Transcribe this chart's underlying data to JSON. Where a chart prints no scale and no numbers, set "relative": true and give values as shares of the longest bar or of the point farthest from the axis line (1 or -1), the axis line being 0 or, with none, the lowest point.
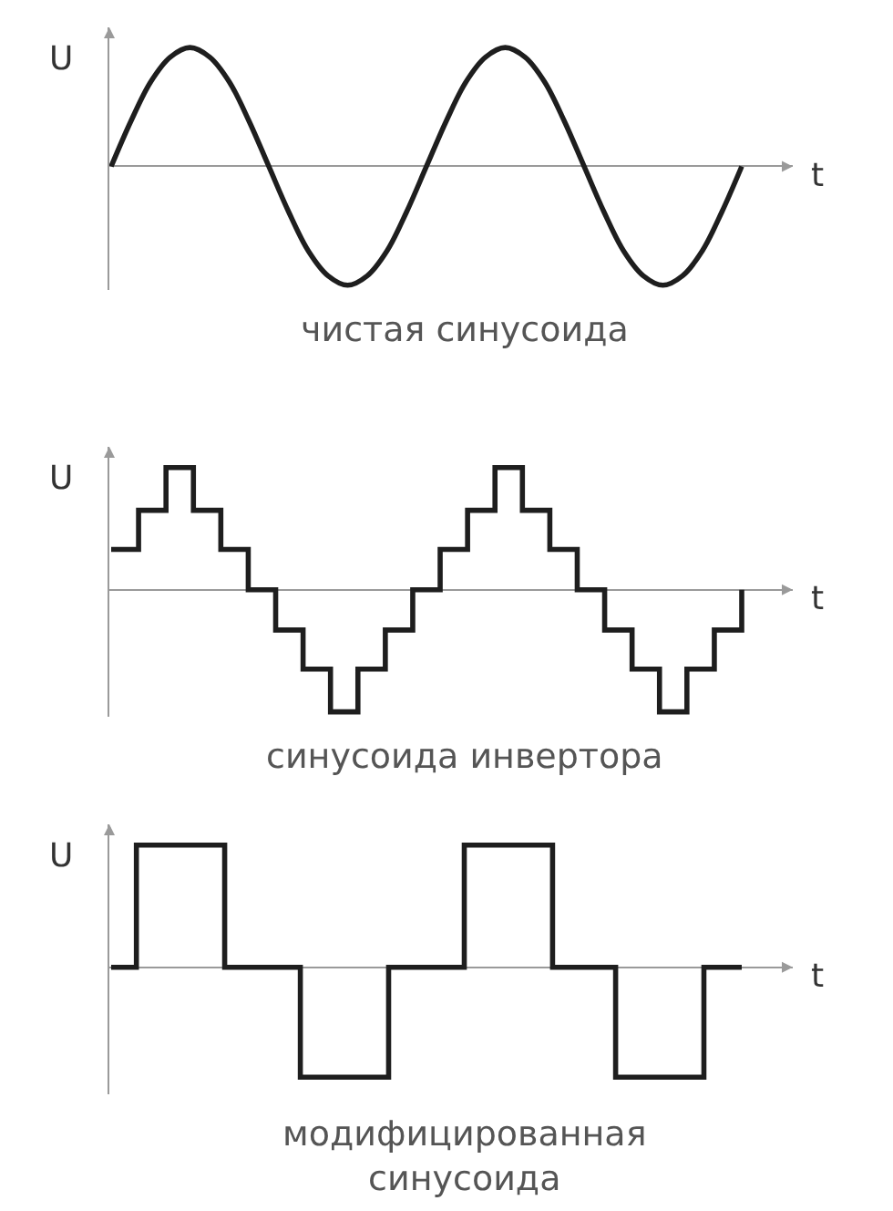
{
  "chart_data": [
    {
      "type": "line",
      "title": "чистая синусоида",
      "xlabel": "t",
      "ylabel": "U",
      "relative": true,
      "categories": [
        null,
        null,
        null,
        null,
        null,
        null,
        null,
        null,
        null,
        null,
        null,
        null,
        null,
        null,
        null,
        null,
        null,
        null,
        null,
        null,
        null,
        null,
        null,
        null,
        null,
        null,
        null,
        null,
        null,
        null,
        null,
        null,
        null
      ],
      "series": [
        {
          "color": "#1e1e1e",
          "values": [
            0,
            0.38,
            0.71,
            0.92,
            1,
            0.92,
            0.71,
            0.38,
            0,
            -0.38,
            -0.71,
            -0.92,
            -1,
            -0.92,
            -0.71,
            -0.38,
            0,
            0.38,
            0.71,
            0.92,
            1,
            0.92,
            0.71,
            0.38,
            0,
            -0.38,
            -0.71,
            -0.92,
            -1,
            -0.92,
            -0.71,
            -0.38,
            0
          ]
        }
      ]
    },
    {
      "type": "step",
      "title": "синусоида инвертора",
      "xlabel": "t",
      "ylabel": "U",
      "relative": true,
      "categories": [
        null,
        null,
        null,
        null,
        null,
        null,
        null,
        null,
        null,
        null,
        null,
        null,
        null,
        null,
        null,
        null,
        null,
        null,
        null,
        null,
        null,
        null,
        null,
        null
      ],
      "series": [
        {
          "color": "#1e1e1e",
          "values": [
            0.33,
            0.65,
            1,
            0.65,
            0.33,
            0,
            -0.33,
            -0.65,
            -1,
            -0.65,
            -0.33,
            0,
            0.33,
            0.65,
            1,
            0.65,
            0.33,
            0,
            -0.33,
            -0.65,
            -1,
            -0.65,
            -0.33,
            0
          ]
        }
      ]
    },
    {
      "type": "step",
      "title": "модифицированная синусоида",
      "xlabel": "t",
      "ylabel": "U",
      "relative": true,
      "categories": [
        null,
        null,
        null,
        null,
        null,
        null,
        null,
        null,
        null,
        null,
        null,
        null,
        null,
        null,
        null,
        null,
        null,
        null,
        null,
        null,
        null,
        null,
        null,
        null,
        null,
        null,
        null,
        null,
        null,
        null,
        null,
        null,
        null,
        null,
        null,
        null,
        null,
        null,
        null,
        null,
        null,
        null,
        null,
        null,
        null,
        null,
        null,
        null,
        null,
        null,
        null
      ],
      "series": [
        {
          "color": "#1e1e1e",
          "values": [
            0,
            0,
            1,
            1,
            1,
            1,
            1,
            1,
            1,
            0,
            0,
            0,
            0,
            0,
            0,
            -0.9,
            -0.9,
            -0.9,
            -0.9,
            -0.9,
            -0.9,
            -0.9,
            0,
            0,
            0,
            0,
            0,
            0,
            1,
            1,
            1,
            1,
            1,
            1,
            1,
            0,
            0,
            0,
            0,
            0,
            -0.9,
            -0.9,
            -0.9,
            -0.9,
            -0.9,
            -0.9,
            -0.9,
            0,
            0,
            0,
            0
          ]
        }
      ]
    }
  ]
}
